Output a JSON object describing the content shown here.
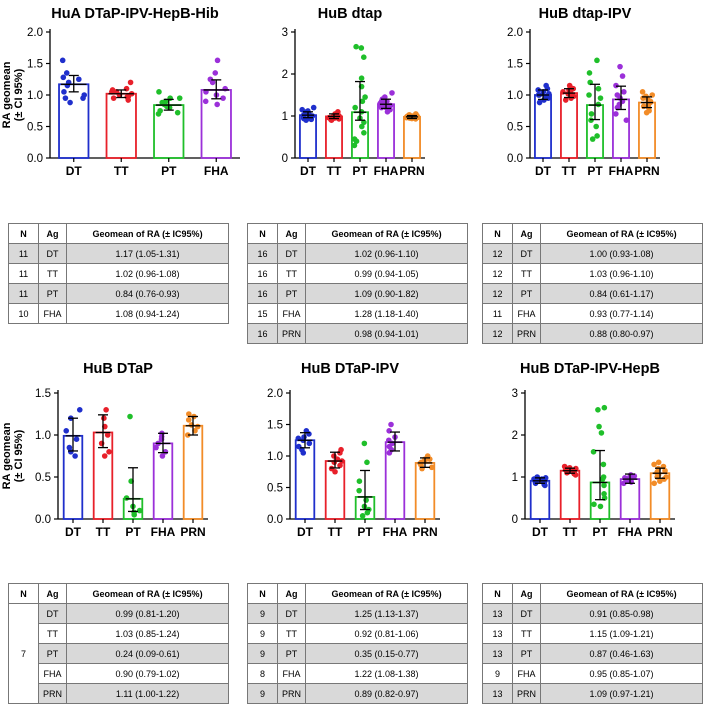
{
  "colors": {
    "DT": "#1f2fcc",
    "TT": "#e8202a",
    "PT": "#1fbf2a",
    "FHA": "#9b30d9",
    "PRN": "#f28c28"
  },
  "ylabel": "RA geomean\n(± CI 95%)",
  "table_headers": [
    "N",
    "Ag",
    "Geomean of RA (± IC95%)"
  ],
  "chart_data": [
    {
      "type": "bar",
      "title": "HuA DTaP-IPV-HepB-Hib",
      "ylabel": "RA geomean (± CI 95%)",
      "categories": [
        "DT",
        "TT",
        "PT",
        "FHA"
      ],
      "values": [
        1.17,
        1.02,
        0.84,
        1.08
      ],
      "ci_low": [
        1.05,
        0.96,
        0.76,
        0.94
      ],
      "ci_high": [
        1.31,
        1.08,
        0.93,
        1.24
      ],
      "points": [
        [
          1.55,
          1.35,
          1.28,
          1.2,
          1.15,
          1.05,
          1.0,
          0.95,
          0.88,
          0.95,
          1.25
        ],
        [
          1.2,
          1.1,
          1.05,
          1.0,
          0.98,
          0.95,
          0.92,
          1.08,
          1.02,
          1.05,
          0.97
        ],
        [
          1.05,
          0.95,
          0.9,
          0.85,
          0.8,
          0.75,
          0.7,
          0.72,
          0.88,
          0.82,
          0.95
        ],
        [
          1.55,
          1.35,
          1.2,
          1.1,
          1.05,
          0.95,
          0.9,
          0.85,
          1.25,
          1.0
        ]
      ],
      "ylim": [
        0,
        2.0
      ],
      "yticks": [
        "0.0",
        "0.5",
        "1.0",
        "1.5",
        "2.0"
      ],
      "table": [
        {
          "N": "11",
          "Ag": "DT",
          "G": "1.17 (1.05-1.31)"
        },
        {
          "N": "11",
          "Ag": "TT",
          "G": "1.02 (0.96-1.08)"
        },
        {
          "N": "11",
          "Ag": "PT",
          "G": "0.84 (0.76-0.93)"
        },
        {
          "N": "10",
          "Ag": "FHA",
          "G": "1.08 (0.94-1.24)"
        }
      ]
    },
    {
      "type": "bar",
      "title": "HuB dtap",
      "categories": [
        "DT",
        "TT",
        "PT",
        "FHA",
        "PRN"
      ],
      "values": [
        1.02,
        0.99,
        1.09,
        1.28,
        0.98
      ],
      "ci_low": [
        0.96,
        0.94,
        0.9,
        1.18,
        0.94
      ],
      "ci_high": [
        1.1,
        1.05,
        1.82,
        1.4,
        1.01
      ],
      "points": [
        [
          1.2,
          1.15,
          1.1,
          1.05,
          1.05,
          1.0,
          1.0,
          0.98,
          0.95,
          0.92,
          0.9,
          1.08,
          1.02,
          0.97,
          1.12,
          0.94
        ],
        [
          1.1,
          1.05,
          1.0,
          1.0,
          0.98,
          0.95,
          0.95,
          0.93,
          0.92,
          0.9,
          1.02,
          0.97,
          1.04,
          0.96,
          0.99,
          1.01
        ],
        [
          2.65,
          2.62,
          2.4,
          1.9,
          1.7,
          1.45,
          1.35,
          1.2,
          0.95,
          0.85,
          0.75,
          0.6,
          0.45,
          0.4,
          0.3,
          1.1
        ],
        [
          1.55,
          1.45,
          1.4,
          1.35,
          1.3,
          1.3,
          1.25,
          1.2,
          1.2,
          1.15,
          1.15,
          1.1,
          1.35,
          1.28,
          1.22
        ],
        [
          1.05,
          1.02,
          1.0,
          0.98,
          0.96,
          0.95,
          0.94,
          1.01,
          0.99,
          0.97,
          1.03,
          0.93,
          1.0,
          0.98,
          0.96,
          1.0
        ]
      ],
      "ylim": [
        0,
        3
      ],
      "yticks": [
        "0",
        "1",
        "2",
        "3"
      ],
      "table": [
        {
          "N": "16",
          "Ag": "DT",
          "G": "1.02 (0.96-1.10)"
        },
        {
          "N": "16",
          "Ag": "TT",
          "G": "0.99 (0.94-1.05)"
        },
        {
          "N": "16",
          "Ag": "PT",
          "G": "1.09 (0.90-1.82)"
        },
        {
          "N": "15",
          "Ag": "FHA",
          "G": "1.28 (1.18-1.40)"
        },
        {
          "N": "16",
          "Ag": "PRN",
          "G": "0.98 (0.94-1.01)"
        }
      ]
    },
    {
      "type": "bar",
      "title": "HuB dtap-IPV",
      "categories": [
        "DT",
        "TT",
        "PT",
        "FHA",
        "PRN"
      ],
      "values": [
        1.0,
        1.03,
        0.84,
        0.93,
        0.88
      ],
      "ci_low": [
        0.93,
        0.96,
        0.61,
        0.77,
        0.8
      ],
      "ci_high": [
        1.08,
        1.1,
        1.17,
        1.14,
        0.97
      ],
      "points": [
        [
          1.15,
          1.1,
          1.05,
          1.0,
          0.98,
          0.95,
          0.92,
          0.88,
          1.02,
          1.08,
          0.96,
          1.0
        ],
        [
          1.15,
          1.1,
          1.08,
          1.05,
          1.02,
          1.0,
          0.98,
          0.95,
          0.92,
          1.05,
          1.0,
          1.12
        ],
        [
          1.55,
          1.35,
          1.2,
          1.1,
          0.95,
          0.85,
          0.7,
          0.6,
          0.5,
          0.35,
          0.3,
          1.0
        ],
        [
          1.45,
          1.3,
          1.15,
          1.0,
          0.95,
          0.9,
          0.8,
          0.7,
          0.6,
          1.05,
          0.85
        ],
        [
          1.05,
          1.0,
          0.98,
          0.95,
          0.9,
          0.88,
          0.85,
          0.8,
          0.75,
          0.72,
          0.92,
          0.82
        ]
      ],
      "ylim": [
        0,
        2.0
      ],
      "yticks": [
        "0.0",
        "0.5",
        "1.0",
        "1.5",
        "2.0"
      ],
      "table": [
        {
          "N": "12",
          "Ag": "DT",
          "G": "1.00 (0.93-1.08)"
        },
        {
          "N": "12",
          "Ag": "TT",
          "G": "1.03 (0.96-1.10)"
        },
        {
          "N": "12",
          "Ag": "PT",
          "G": "0.84 (0.61-1.17)"
        },
        {
          "N": "11",
          "Ag": "FHA",
          "G": "0.93 (0.77-1.14)"
        },
        {
          "N": "12",
          "Ag": "PRN",
          "G": "0.88 (0.80-0.97)"
        }
      ]
    },
    {
      "type": "bar",
      "title": "HuB DTaP",
      "ylabel": "RA geomean (± CI 95%)",
      "categories": [
        "DT",
        "TT",
        "PT",
        "FHA",
        "PRN"
      ],
      "values": [
        0.99,
        1.03,
        0.24,
        0.9,
        1.11
      ],
      "ci_low": [
        0.81,
        0.85,
        0.09,
        0.79,
        1.0
      ],
      "ci_high": [
        1.2,
        1.24,
        0.61,
        1.02,
        1.22
      ],
      "points": [
        [
          1.3,
          1.2,
          1.05,
          0.95,
          0.85,
          0.75,
          0.8
        ],
        [
          1.3,
          1.2,
          1.1,
          1.0,
          0.9,
          0.8,
          0.75
        ],
        [
          1.22,
          0.45,
          0.25,
          0.15,
          0.1,
          0.05,
          0.08
        ],
        [
          1.02,
          0.98,
          0.95,
          0.9,
          0.85,
          0.8,
          0.75
        ],
        [
          1.25,
          1.22,
          1.18,
          1.12,
          1.1,
          1.05,
          1.0
        ]
      ],
      "ylim": [
        0,
        1.5
      ],
      "yticks": [
        "0.0",
        "0.5",
        "1.0",
        "1.5"
      ],
      "table": [
        {
          "N": "7",
          "Ag": "DT",
          "G": "0.99 (0.81-1.20)"
        },
        {
          "N": "",
          "Ag": "TT",
          "G": "1.03 (0.85-1.24)"
        },
        {
          "N": "",
          "Ag": "PT",
          "G": "0.24 (0.09-0.61)"
        },
        {
          "N": "",
          "Ag": "FHA",
          "G": "0.90 (0.79-1.02)"
        },
        {
          "N": "",
          "Ag": "PRN",
          "G": "1.11 (1.00-1.22)"
        }
      ]
    },
    {
      "type": "bar",
      "title": "HuB DTaP-IPV",
      "categories": [
        "DT",
        "TT",
        "PT",
        "FHA",
        "PRN"
      ],
      "values": [
        1.25,
        0.92,
        0.35,
        1.22,
        0.89
      ],
      "ci_low": [
        1.13,
        0.81,
        0.15,
        1.08,
        0.82
      ],
      "ci_high": [
        1.37,
        1.06,
        0.77,
        1.38,
        0.97
      ],
      "points": [
        [
          1.4,
          1.35,
          1.3,
          1.25,
          1.2,
          1.15,
          1.1,
          1.05,
          1.28
        ],
        [
          1.1,
          1.05,
          1.0,
          0.95,
          0.9,
          0.85,
          0.8,
          0.75,
          0.92
        ],
        [
          1.2,
          0.9,
          0.6,
          0.45,
          0.3,
          0.2,
          0.15,
          0.1,
          0.05
        ],
        [
          1.5,
          1.4,
          1.3,
          1.25,
          1.2,
          1.15,
          1.1,
          1.05
        ],
        [
          1.0,
          0.95,
          0.92,
          0.9,
          0.88,
          0.85,
          0.82,
          0.8,
          0.95
        ]
      ],
      "ylim": [
        0,
        2.0
      ],
      "yticks": [
        "0.0",
        "0.5",
        "1.0",
        "1.5",
        "2.0"
      ],
      "table": [
        {
          "N": "9",
          "Ag": "DT",
          "G": "1.25 (1.13-1.37)"
        },
        {
          "N": "9",
          "Ag": "TT",
          "G": "0.92 (0.81-1.06)"
        },
        {
          "N": "9",
          "Ag": "PT",
          "G": "0.35 (0.15-0.77)"
        },
        {
          "N": "8",
          "Ag": "FHA",
          "G": "1.22 (1.08-1.38)"
        },
        {
          "N": "9",
          "Ag": "PRN",
          "G": "0.89 (0.82-0.97)"
        }
      ]
    },
    {
      "type": "bar",
      "title": "HuB DTaP-IPV-HepB",
      "categories": [
        "DT",
        "TT",
        "PT",
        "FHA",
        "PRN"
      ],
      "values": [
        0.91,
        1.15,
        0.87,
        0.95,
        1.09
      ],
      "ci_low": [
        0.85,
        1.09,
        0.46,
        0.85,
        0.97
      ],
      "ci_high": [
        0.98,
        1.21,
        1.63,
        1.07,
        1.21
      ],
      "points": [
        [
          1.0,
          0.98,
          0.95,
          0.92,
          0.9,
          0.88,
          0.85,
          0.82,
          0.8,
          0.95,
          0.9,
          0.87,
          0.93
        ],
        [
          1.25,
          1.22,
          1.2,
          1.18,
          1.15,
          1.12,
          1.1,
          1.08,
          1.05,
          1.15,
          1.2,
          1.1,
          1.17
        ],
        [
          2.65,
          2.6,
          2.2,
          2.05,
          1.6,
          1.3,
          1.0,
          0.8,
          0.6,
          0.5,
          0.35,
          0.3,
          0.95
        ],
        [
          1.05,
          1.0,
          0.98,
          0.95,
          0.92,
          0.9,
          0.88,
          0.85,
          1.02
        ],
        [
          1.35,
          1.3,
          1.2,
          1.15,
          1.1,
          1.05,
          1.0,
          0.95,
          0.9,
          0.85,
          1.12,
          1.25,
          1.0
        ]
      ],
      "ylim": [
        0,
        3
      ],
      "yticks": [
        "0",
        "1",
        "2",
        "3"
      ],
      "table": [
        {
          "N": "13",
          "Ag": "DT",
          "G": "0.91 (0.85-0.98)"
        },
        {
          "N": "13",
          "Ag": "TT",
          "G": "1.15 (1.09-1.21)"
        },
        {
          "N": "13",
          "Ag": "PT",
          "G": "0.87 (0.46-1.63)"
        },
        {
          "N": "9",
          "Ag": "FHA",
          "G": "0.95 (0.85-1.07)"
        },
        {
          "N": "13",
          "Ag": "PRN",
          "G": "1.09 (0.97-1.21)"
        }
      ]
    }
  ]
}
